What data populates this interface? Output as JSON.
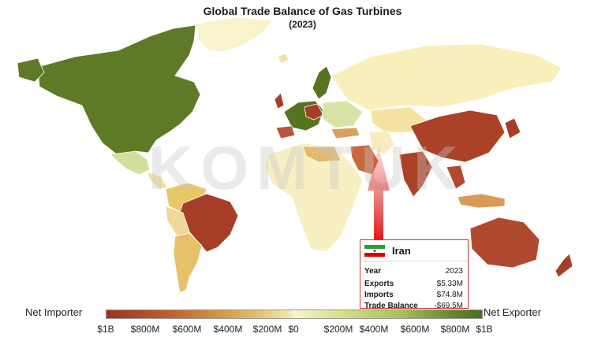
{
  "title": "Global Trade Balance of Gas Turbines",
  "subtitle": "(2023)",
  "watermark": "KOMTUK",
  "legend": {
    "left_label": "Net Importer",
    "right_label": "Net Exporter",
    "ticks": [
      "$1B",
      "$800M",
      "$600M",
      "$400M",
      "$200M",
      "$0",
      "$200M",
      "$400M",
      "$600M",
      "$800M",
      "$1B"
    ],
    "colors": {
      "importer": "#9b3322",
      "neutral": "#f8f4cf",
      "exporter": "#4d6b1d"
    }
  },
  "tooltip": {
    "country": "Iran",
    "rows": [
      {
        "label": "Year",
        "value": "2023"
      },
      {
        "label": "Exports",
        "value": "$5.33M"
      },
      {
        "label": "Imports",
        "value": "$74.8M"
      },
      {
        "label": "Trade Balance",
        "value": "-$69.5M"
      }
    ]
  }
}
